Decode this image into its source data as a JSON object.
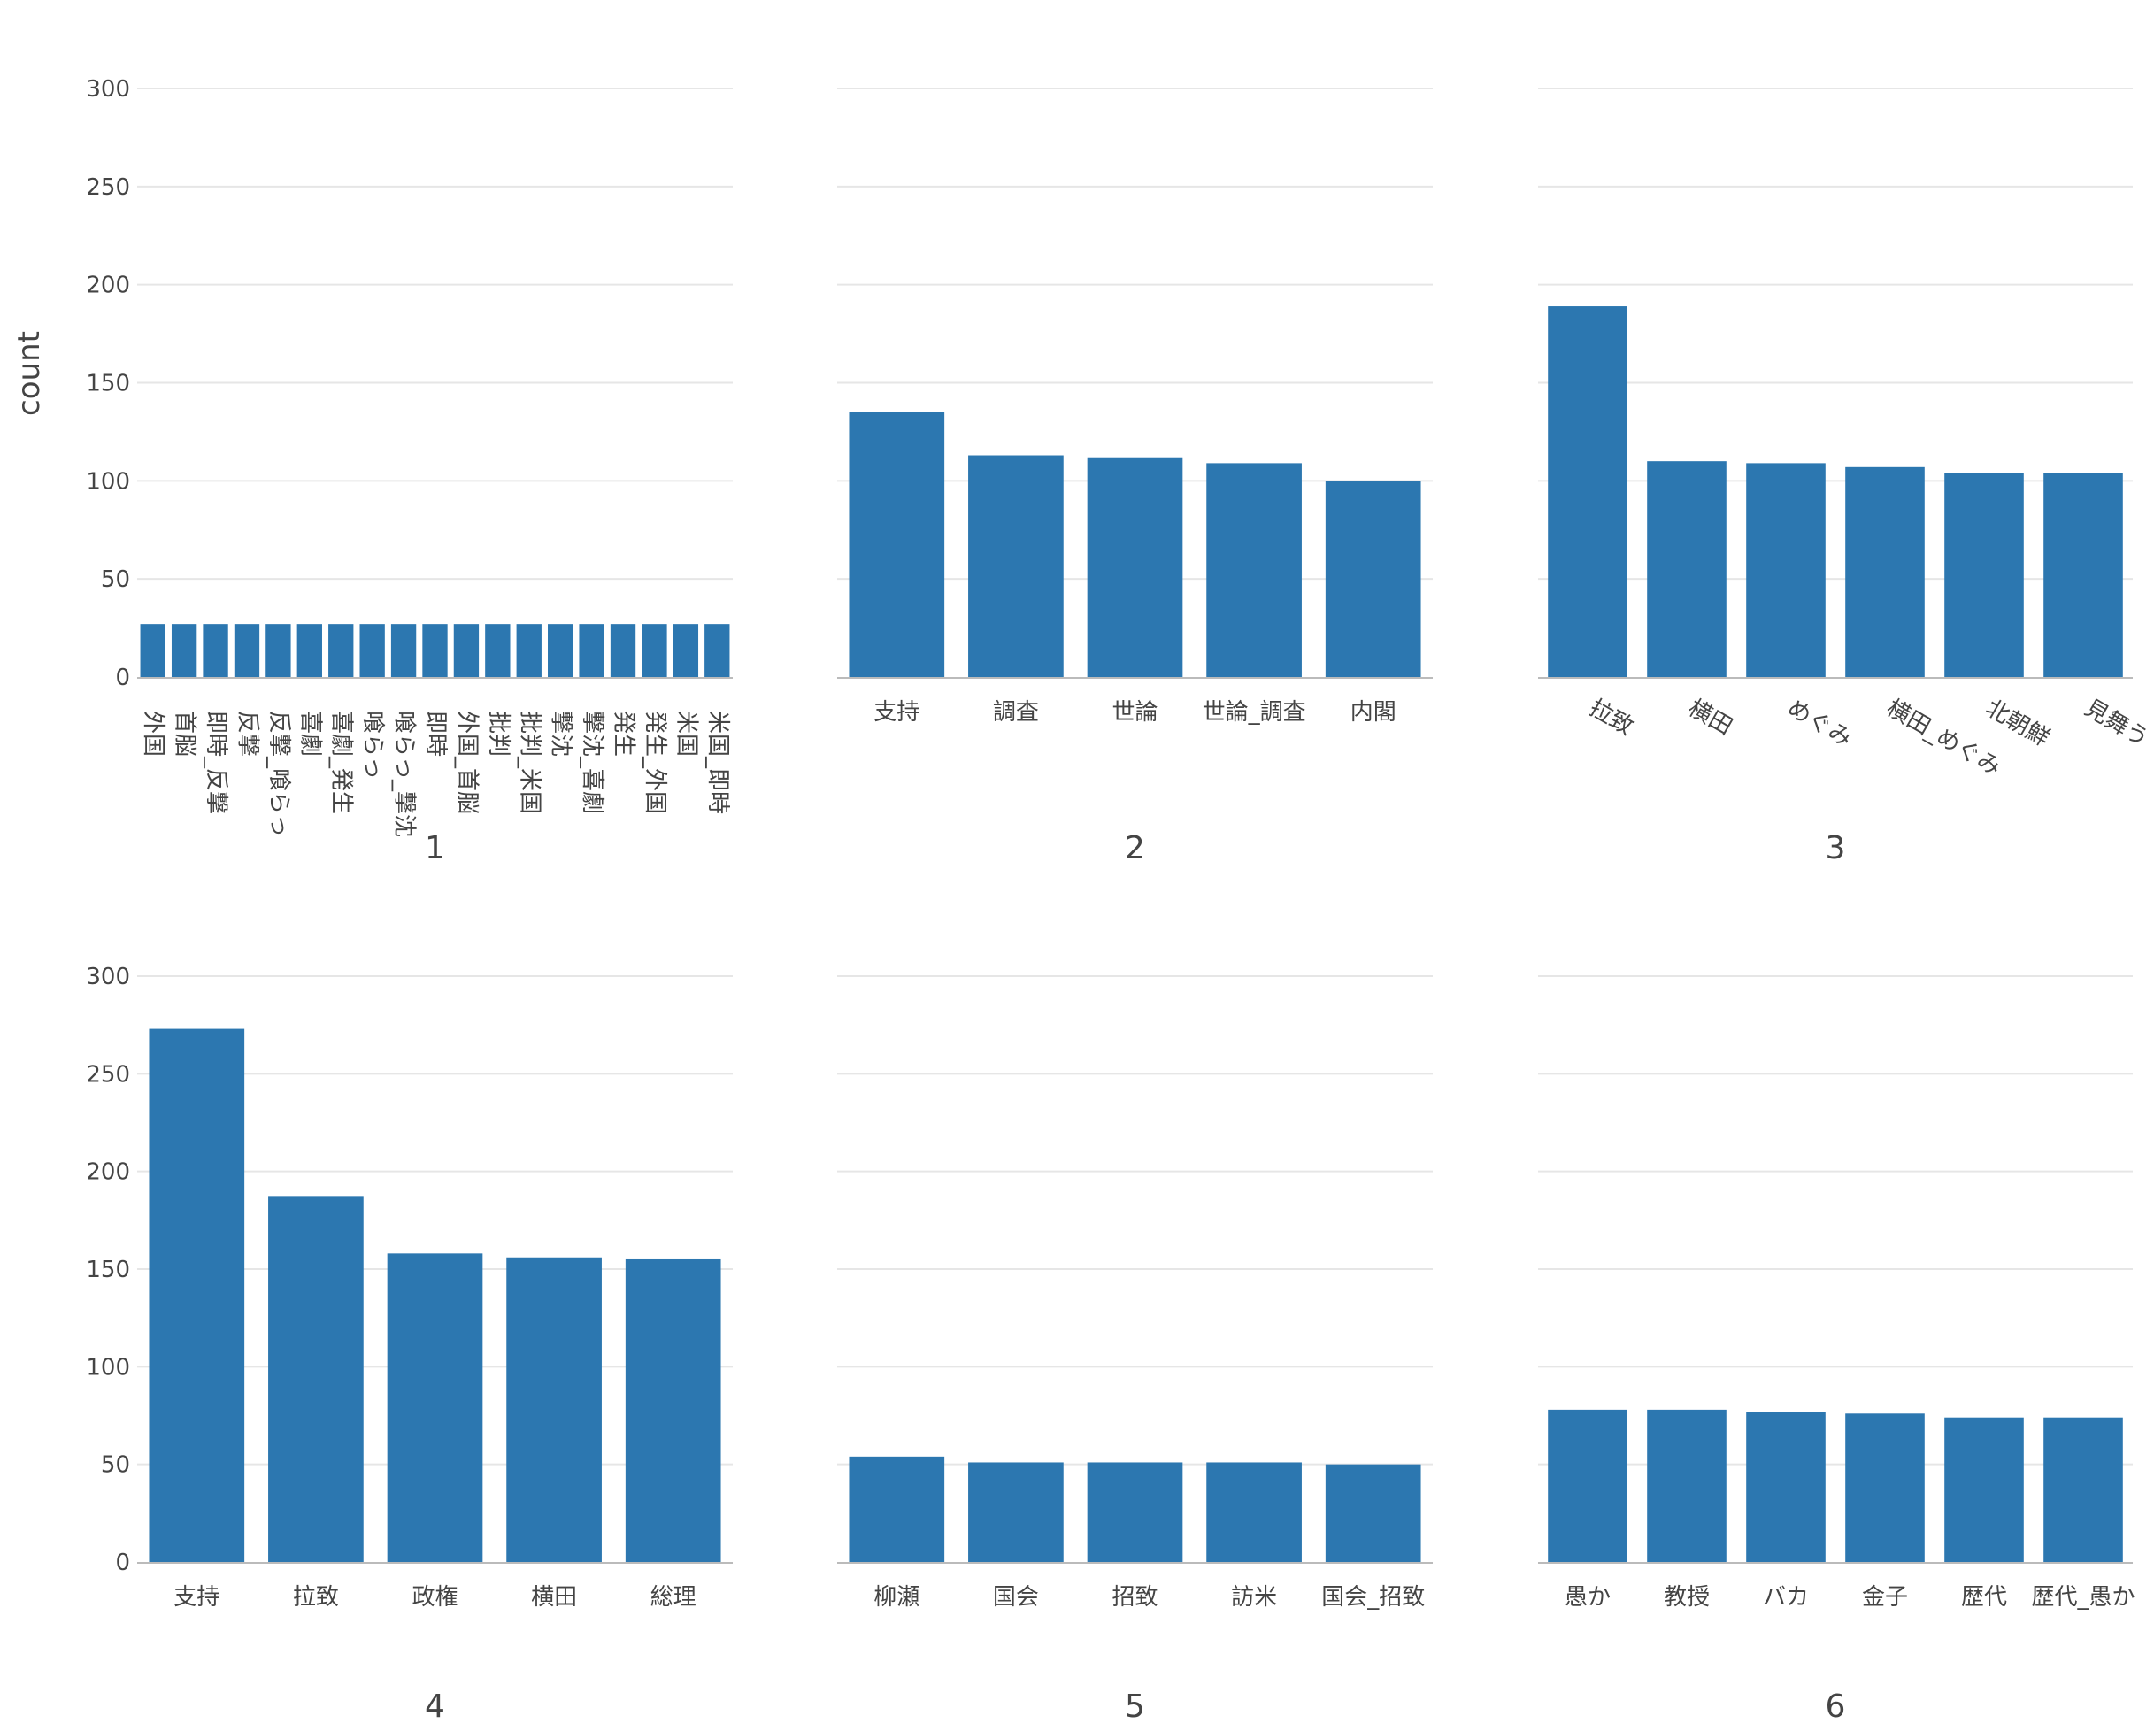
{
  "chart_data": {
    "type": "bar",
    "ylabel": "count",
    "ylim": [
      0,
      300
    ],
    "yticks": [
      0,
      50,
      100,
      150,
      200,
      250,
      300
    ],
    "bar_color": "#2c77b0",
    "panels": [
      {
        "title": "1",
        "label_style": "vertical",
        "categories": [
          "外国",
          "首脳",
          "即時_反撃",
          "反撃",
          "反撃_喰らっ",
          "喜劇",
          "喜劇_発生",
          "喰らっ",
          "喰らっ_撃沈",
          "即時",
          "外国_首脳",
          "批判",
          "批判_米国",
          "撃沈",
          "撃沈_喜劇",
          "発生",
          "発生_外国",
          "米国",
          "米国_即時"
        ],
        "values": [
          27,
          27,
          27,
          27,
          27,
          27,
          27,
          27,
          27,
          27,
          27,
          27,
          27,
          27,
          27,
          27,
          27,
          27,
          27
        ]
      },
      {
        "title": "2",
        "label_style": "horizontal",
        "categories": [
          "支持",
          "調査",
          "世論",
          "世論_調査",
          "内閣"
        ],
        "values": [
          135,
          113,
          112,
          109,
          100
        ]
      },
      {
        "title": "3",
        "label_style": "rotated",
        "categories": [
          "拉致",
          "横田",
          "めぐみ",
          "横田_めぐみ",
          "北朝鮮",
          "見舞う"
        ],
        "values": [
          189,
          110,
          109,
          107,
          104,
          104
        ]
      },
      {
        "title": "4",
        "label_style": "horizontal",
        "categories": [
          "支持",
          "拉致",
          "政権",
          "横田",
          "総理"
        ],
        "values": [
          273,
          187,
          158,
          156,
          155
        ]
      },
      {
        "title": "5",
        "label_style": "horizontal",
        "categories": [
          "柳瀬",
          "国会",
          "招致",
          "訪米",
          "国会_招致"
        ],
        "values": [
          54,
          51,
          51,
          51,
          50
        ]
      },
      {
        "title": "6",
        "label_style": "horizontal",
        "categories": [
          "愚か",
          "教授",
          "バカ",
          "金子",
          "歴代",
          "歴代_愚か"
        ],
        "values": [
          78,
          78,
          77,
          76,
          74,
          74
        ]
      }
    ]
  }
}
